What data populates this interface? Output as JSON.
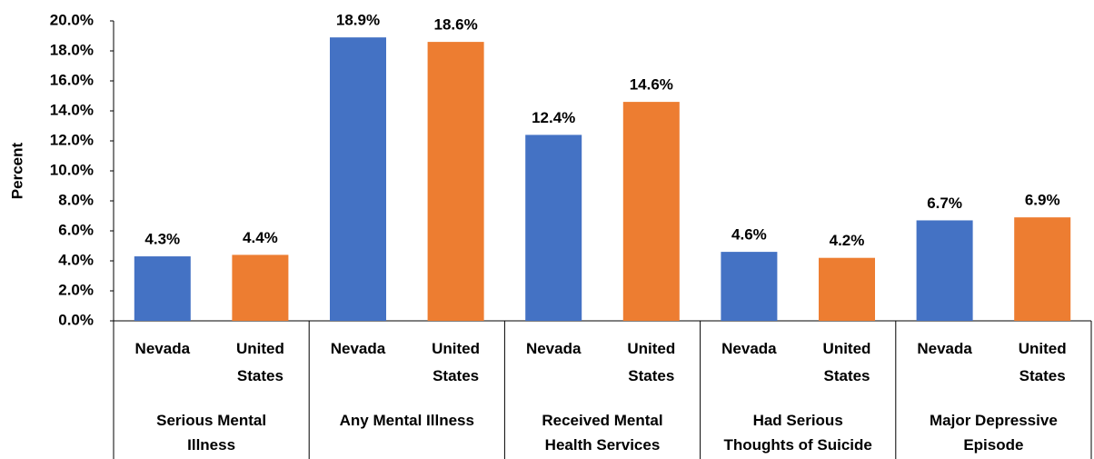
{
  "chart_data": {
    "type": "bar",
    "y_label": "Percent",
    "categories": [
      "Serious Mental Illness",
      "Any Mental Illness",
      "Received Mental Health Services",
      "Had Serious Thoughts of Suicide",
      "Major Depressive Episode"
    ],
    "series": [
      {
        "name": "Nevada",
        "color": "#4472c4",
        "values": [
          4.3,
          18.9,
          12.4,
          4.6,
          6.7
        ],
        "value_labels": [
          "4.3%",
          "18.9%",
          "12.4%",
          "4.6%",
          "6.7%"
        ]
      },
      {
        "name": "United States",
        "color": "#ed7d31",
        "values": [
          4.4,
          18.6,
          14.6,
          4.2,
          6.9
        ],
        "value_labels": [
          "4.4%",
          "18.6%",
          "14.6%",
          "4.2%",
          "6.9%"
        ]
      }
    ],
    "ylim": [
      0,
      20
    ],
    "yticks": [
      {
        "value": 0,
        "label": "0.0%"
      },
      {
        "value": 2,
        "label": "2.0%"
      },
      {
        "value": 4,
        "label": "4.0%"
      },
      {
        "value": 6,
        "label": "6.0%"
      },
      {
        "value": 8,
        "label": "8.0%"
      },
      {
        "value": 10,
        "label": "10.0%"
      },
      {
        "value": 12,
        "label": "12.0%"
      },
      {
        "value": 14,
        "label": "14.0%"
      },
      {
        "value": 16,
        "label": "16.0%"
      },
      {
        "value": 18,
        "label": "18.0%"
      },
      {
        "value": 20,
        "label": "20.0%"
      }
    ]
  }
}
